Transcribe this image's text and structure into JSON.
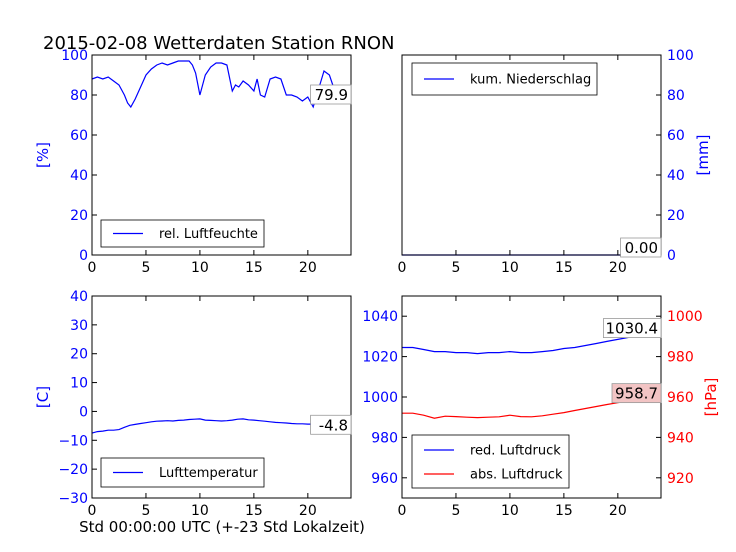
{
  "title": "2015-02-08 Wetterdaten Station RNON",
  "xlabel": "Std 00:00:00 UTC (+-23 Std Lokalzeit)",
  "colors": {
    "blue": "#0000ff",
    "red": "#ff0000",
    "axis": "#000000"
  },
  "chart_data": [
    {
      "type": "line",
      "panel": "humidity",
      "ylabel": "[%]",
      "xlim": [
        0,
        24
      ],
      "ylim": [
        0,
        100
      ],
      "xticks": [
        0,
        5,
        10,
        15,
        20
      ],
      "yticks": [
        0,
        20,
        40,
        60,
        80,
        100
      ],
      "legend": "lower-left",
      "series": [
        {
          "name": "rel. Luftfeuchte",
          "color": "#0000ff",
          "x": [
            0,
            0.5,
            1,
            1.5,
            2,
            2.5,
            3,
            3.3,
            3.6,
            4,
            4.5,
            5,
            5.5,
            6,
            6.5,
            7,
            7.5,
            8,
            8.5,
            9,
            9.3,
            9.6,
            10,
            10.5,
            11,
            11.5,
            12,
            12.5,
            13,
            13.3,
            13.6,
            14,
            14.5,
            15,
            15.3,
            15.6,
            16,
            16.5,
            17,
            17.5,
            18,
            18.5,
            19,
            19.5,
            20,
            20.5,
            21,
            21.5,
            22,
            22.5,
            23,
            23.5,
            24
          ],
          "y": [
            88,
            89,
            88,
            89,
            87,
            85,
            80,
            76,
            74,
            78,
            84,
            90,
            93,
            95,
            96,
            95,
            96,
            97,
            97,
            97,
            95,
            91,
            80,
            90,
            94,
            96,
            96,
            95,
            82,
            85,
            84,
            87,
            85,
            82,
            88,
            80,
            79,
            88,
            89,
            88,
            80,
            80,
            79,
            77,
            79,
            74,
            83,
            92,
            90,
            82,
            80,
            79,
            80
          ]
        }
      ],
      "annotation": "79.9"
    },
    {
      "type": "line",
      "panel": "precipitation",
      "ylabel": "[mm]",
      "xlim": [
        0,
        24
      ],
      "ylim": [
        0,
        100
      ],
      "xticks": [
        0,
        5,
        10,
        15,
        20
      ],
      "yticks": [
        0,
        20,
        40,
        60,
        80,
        100
      ],
      "legend": "top-left",
      "series": [
        {
          "name": "kum. Niederschlag",
          "color": "#0000ff",
          "x": [
            0,
            24
          ],
          "y": [
            0,
            0
          ]
        }
      ],
      "annotation": "0.00"
    },
    {
      "type": "line",
      "panel": "temperature",
      "ylabel": "[C]",
      "xlim": [
        0,
        24
      ],
      "ylim": [
        -30,
        40
      ],
      "xticks": [
        0,
        5,
        10,
        15,
        20
      ],
      "yticks": [
        -30,
        -20,
        -10,
        0,
        10,
        20,
        30,
        40
      ],
      "legend": "lower-left",
      "series": [
        {
          "name": "Lufttemperatur",
          "color": "#0000ff",
          "x": [
            0,
            0.5,
            1,
            1.5,
            2,
            2.5,
            3,
            3.5,
            4,
            4.5,
            5,
            5.5,
            6,
            6.5,
            7,
            7.5,
            8,
            8.5,
            9,
            9.5,
            10,
            10.5,
            11,
            11.5,
            12,
            12.5,
            13,
            13.5,
            14,
            14.5,
            15,
            15.5,
            16,
            16.5,
            17,
            17.5,
            18,
            18.5,
            19,
            19.5,
            20,
            20.5,
            21,
            21.5,
            22,
            22.5,
            23,
            23.5,
            24
          ],
          "y": [
            -7.5,
            -7,
            -6.8,
            -6.5,
            -6.5,
            -6.3,
            -5.5,
            -4.8,
            -4.5,
            -4.2,
            -3.9,
            -3.6,
            -3.4,
            -3.3,
            -3.2,
            -3.3,
            -3.1,
            -3,
            -2.8,
            -2.7,
            -2.6,
            -3,
            -3.1,
            -3.2,
            -3.3,
            -3.2,
            -3,
            -2.7,
            -2.6,
            -2.9,
            -3,
            -3.2,
            -3.4,
            -3.6,
            -3.8,
            -3.9,
            -4,
            -4.2,
            -4.3,
            -4.3,
            -4.4,
            -4.4,
            -4.5,
            -4.6,
            -4.7,
            -4.8,
            -4.8,
            -4.8,
            -4.8
          ]
        }
      ],
      "annotation": "-4.8"
    },
    {
      "type": "line",
      "panel": "pressure",
      "ylabel": "[hPa]",
      "xlim": [
        0,
        24
      ],
      "ylim_left": [
        950,
        1050
      ],
      "ylim_right": [
        910,
        1010
      ],
      "xticks": [
        0,
        5,
        10,
        15,
        20
      ],
      "yticks_left": [
        960,
        980,
        1000,
        1020,
        1040
      ],
      "yticks_right": [
        920,
        940,
        960,
        980,
        1000
      ],
      "legend": "lower-left",
      "series": [
        {
          "name": "red. Luftdruck",
          "color": "#0000ff",
          "axis": "left",
          "x": [
            0,
            1,
            2,
            3,
            4,
            5,
            6,
            7,
            8,
            9,
            10,
            11,
            12,
            13,
            14,
            15,
            16,
            17,
            18,
            19,
            20,
            21,
            22,
            23,
            24
          ],
          "y": [
            1024.5,
            1024.5,
            1023.5,
            1022.5,
            1022.5,
            1022,
            1022,
            1021.5,
            1022,
            1022,
            1022.5,
            1022,
            1022,
            1022.5,
            1023,
            1024,
            1024.5,
            1025.5,
            1026.5,
            1027.5,
            1028.5,
            1029.5,
            1030,
            1030.3,
            1030.4
          ]
        },
        {
          "name": "abs. Luftdruck",
          "color": "#ff0000",
          "axis": "right",
          "x": [
            0,
            1,
            2,
            3,
            4,
            5,
            6,
            7,
            8,
            9,
            10,
            11,
            12,
            13,
            14,
            15,
            16,
            17,
            18,
            19,
            20,
            21,
            22,
            23,
            24
          ],
          "y": [
            952,
            952,
            951,
            949.5,
            950.5,
            950.3,
            950,
            949.8,
            950,
            950.2,
            951,
            950.3,
            950.2,
            950.7,
            951.5,
            952.3,
            953.3,
            954.3,
            955.3,
            956.3,
            957.2,
            958,
            958.4,
            958.6,
            958.7
          ]
        }
      ],
      "annotation_left": "1030.4",
      "annotation_right": "958.7"
    }
  ]
}
